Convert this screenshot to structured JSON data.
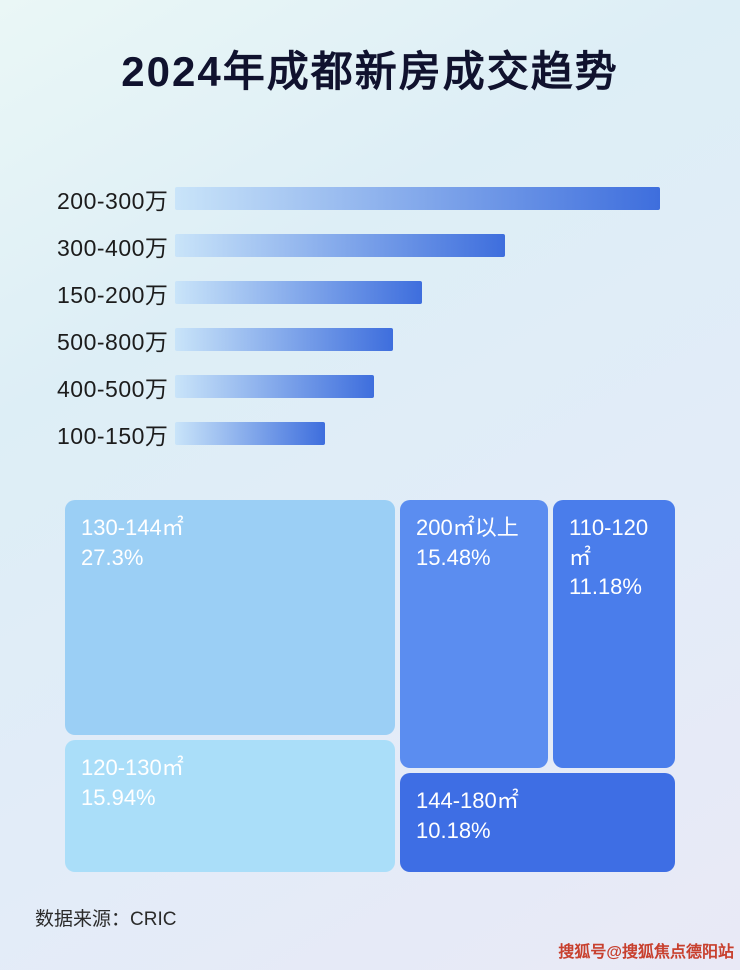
{
  "page": {
    "title": "2024年成都新房成交趋势",
    "source": "数据来源：CRIC",
    "watermark": "搜狐号@搜狐焦点德阳站"
  },
  "colors": {
    "background_start": "#eaf7f6",
    "background_end": "#e9e9f6",
    "title_color": "#10122e",
    "bar_gradient_start": "#c9e4f9",
    "bar_gradient_end": "#3e6edd",
    "watermark_color": "#c8402e"
  },
  "chart_data": [
    {
      "type": "bar",
      "orientation": "horizontal",
      "title": "2024年成都新房成交趋势",
      "categories": [
        "200-300万",
        "300-400万",
        "150-200万",
        "500-800万",
        "400-500万",
        "100-150万"
      ],
      "values_relative_pct": [
        100,
        68,
        51,
        45,
        41,
        31
      ],
      "value_labels_shown": false,
      "xlabel": "",
      "ylabel": "",
      "grid": false,
      "legend": false
    },
    {
      "type": "treemap",
      "title": "",
      "items": [
        {
          "label": "130-144㎡",
          "value_pct": 27.3,
          "value_label": "27.3%",
          "color": "#9bcff5"
        },
        {
          "label": "200㎡以上",
          "value_pct": 15.48,
          "value_label": "15.48%",
          "color": "#5b8df0"
        },
        {
          "label": "110-120㎡",
          "value_pct": 11.18,
          "value_label": "11.18%",
          "color": "#4a7deb"
        },
        {
          "label": "120-130㎡",
          "value_pct": 15.94,
          "value_label": "15.94%",
          "color": "#aadef9"
        },
        {
          "label": "144-180㎡",
          "value_pct": 10.18,
          "value_label": "10.18%",
          "color": "#3e6ee4"
        }
      ]
    }
  ]
}
